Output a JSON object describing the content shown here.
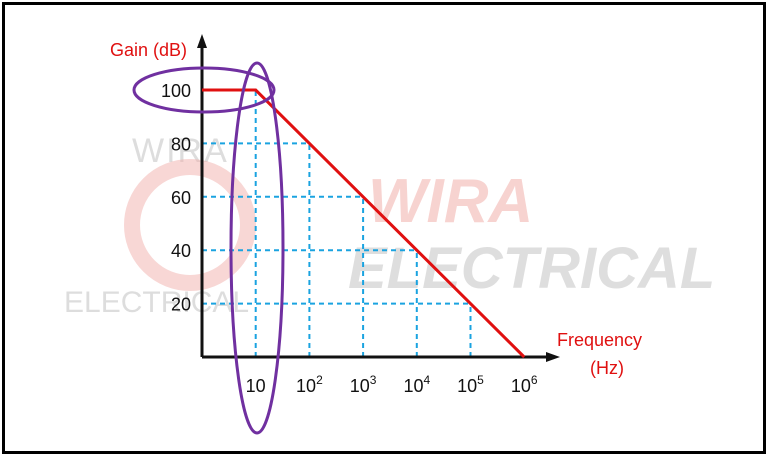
{
  "chart_data": {
    "type": "line",
    "xlabel_line1": "Frequency",
    "xlabel_line2": "(Hz)",
    "ylabel": "Gain (dB)",
    "x_ticks": [
      {
        "base": "10",
        "exp": ""
      },
      {
        "base": "10",
        "exp": "2"
      },
      {
        "base": "10",
        "exp": "3"
      },
      {
        "base": "10",
        "exp": "4"
      },
      {
        "base": "10",
        "exp": "5"
      },
      {
        "base": "10",
        "exp": "6"
      }
    ],
    "y_ticks": [
      "20",
      "40",
      "60",
      "80",
      "100"
    ],
    "x_scale": "log",
    "xlim": [
      1,
      1000000
    ],
    "ylim": [
      0,
      100
    ],
    "grid": "dashed-at-line-points",
    "series": [
      {
        "color": "#e01010",
        "points": [
          {
            "x": 1,
            "y": 100
          },
          {
            "x": 10,
            "y": 100
          },
          {
            "x": 1000000,
            "y": 0
          }
        ]
      }
    ],
    "highlights": [
      "ellipse-around-100",
      "ellipse-around-10"
    ]
  },
  "watermark": {
    "top_small": "WIRA",
    "brand_line1": "WIRA",
    "brand_line2": "ELECTRICAL",
    "bottom_left": "ELECTRICAL"
  },
  "colors": {
    "curve": "#e01010",
    "axis_label": "#e01010",
    "grid": "#1aa3e0",
    "highlight": "#7030a0",
    "axis": "#111111"
  }
}
